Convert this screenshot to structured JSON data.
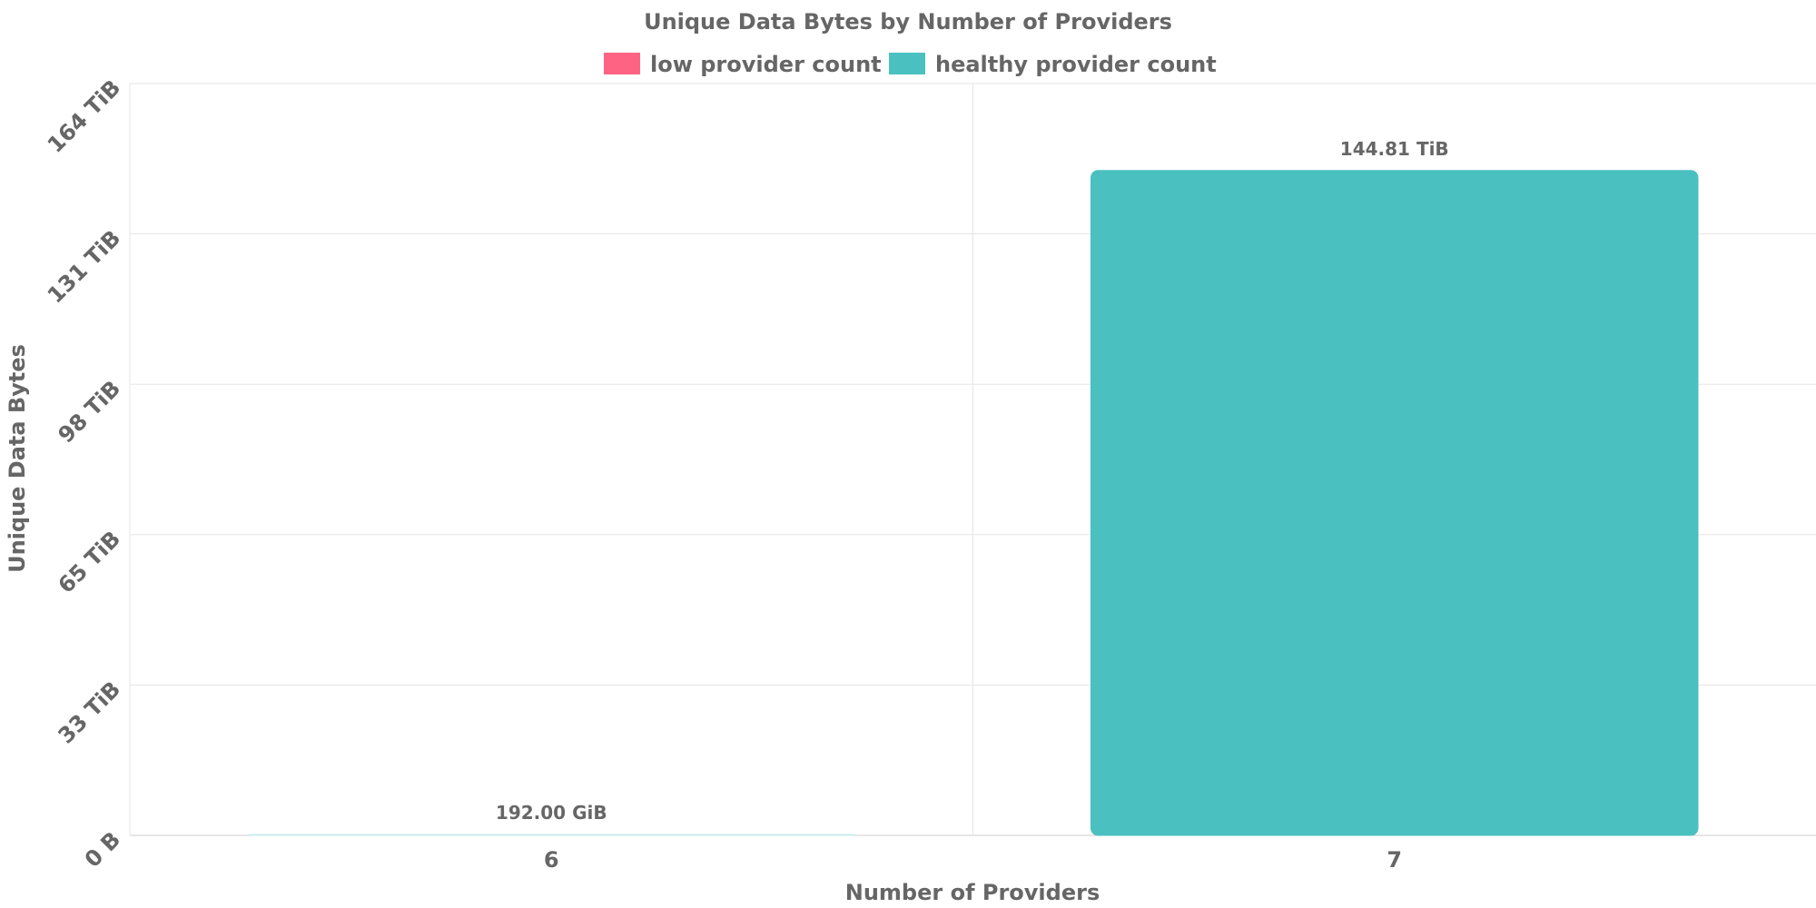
{
  "chart_data": {
    "type": "bar",
    "title": "Unique Data Bytes by Number of Providers",
    "xlabel": "Number of Providers",
    "ylabel": "Unique Data Bytes",
    "categories": [
      "6",
      "7"
    ],
    "values_tib": [
      0.1875,
      144.81
    ],
    "data_labels": [
      "192.00 GiB",
      "144.81 TiB"
    ],
    "bar_series": [
      "low provider count",
      "healthy provider count"
    ],
    "y_ticks": [
      "0 B",
      "33 TiB",
      "65 TiB",
      "98 TiB",
      "131 TiB",
      "164 TiB"
    ],
    "y_tick_values_tib": [
      0,
      32.75,
      65.5,
      98.25,
      131,
      163.75
    ],
    "ylim_tib": [
      0,
      163.75
    ],
    "grid": true,
    "legend_placement": "top-center",
    "legend": [
      {
        "label": "low provider count",
        "color": "#ff6384"
      },
      {
        "label": "healthy provider count",
        "color": "#4bc0c0"
      }
    ],
    "colors": {
      "low": "#ff6384",
      "healthy": "#4bc0c0",
      "grid": "#e5e5e5",
      "text": "#666666"
    }
  }
}
